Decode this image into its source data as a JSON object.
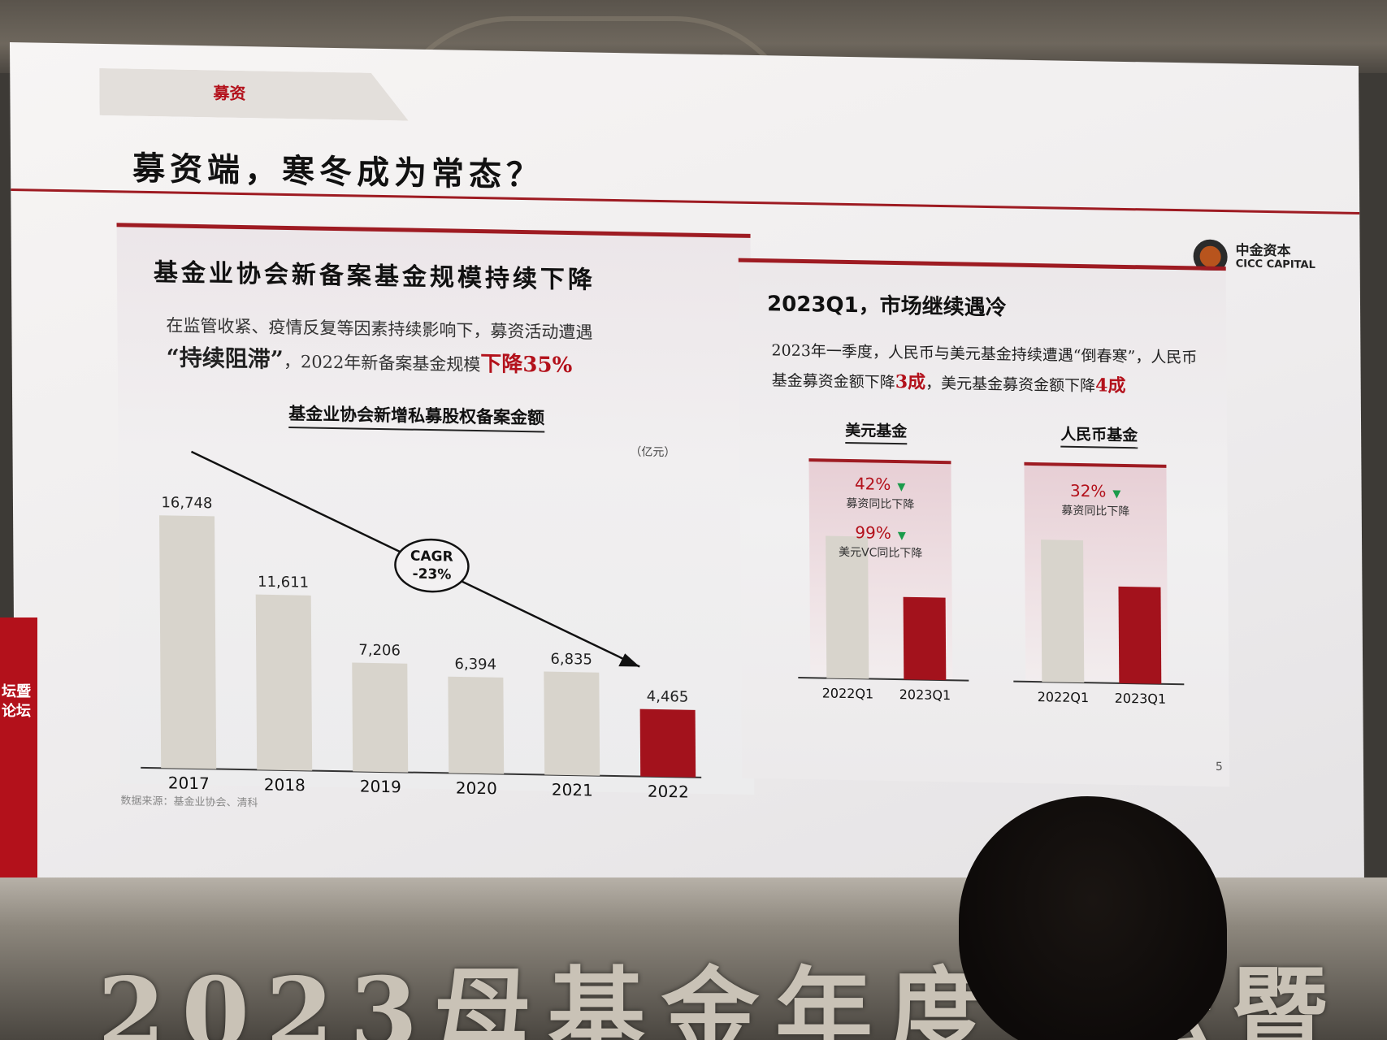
{
  "slide": {
    "tag": "募资",
    "title": "募资端，寒冬成为常态？",
    "logo_cn": "中金资本",
    "logo_en": "CICC CAPITAL",
    "page_number": "5",
    "source": "数据来源：基金业协会、清科"
  },
  "left_panel": {
    "title": "基金业协会新备案基金规模持续下降",
    "desc_line1": "在监管收紧、疫情反复等因素持续影响下，募资活动遭遇",
    "desc_quote": "“持续阻滞”",
    "desc_mid": "，2022年新备案基金规模",
    "desc_highlight": "下降35%",
    "chart_title": "基金业协会新增私募股权备案金额",
    "unit": "（亿元）",
    "cagr_line1": "CAGR",
    "cagr_line2": "-23%"
  },
  "right_panel": {
    "title": "2023Q1，市场继续遇冷",
    "desc_a": "2023年一季度，人民币与美元基金持续遭遇“倒春寒”，人民币基金募资金额下降",
    "desc_hl1": "3成",
    "desc_b": "，美元基金募资金额下降",
    "desc_hl2": "4成",
    "usd_label": "美元基金",
    "rmb_label": "人民币基金",
    "usd_stat1_pct": "42%",
    "usd_stat1_label": "募资同比下降",
    "usd_stat2_pct": "99%",
    "usd_stat2_label": "美元VC同比下降",
    "rmb_stat1_pct": "32%",
    "rmb_stat1_label": "募资同比下降",
    "down_icon": "▼"
  },
  "venue": {
    "side_text": "坛暨 论坛",
    "banner_text": "2023母基金年度论坛暨"
  },
  "colors": {
    "accent_red": "#9e1b22",
    "bar_gray": "#d8d4cc",
    "bar_red": "#a3121c",
    "down_green": "#1a9b4a"
  },
  "chart_data": [
    {
      "type": "bar",
      "title": "基金业协会新增私募股权备案金额",
      "unit": "（亿元）",
      "categories": [
        "2017",
        "2018",
        "2019",
        "2020",
        "2021",
        "2022"
      ],
      "values": [
        16748,
        11611,
        7206,
        6394,
        6835,
        4465
      ],
      "labels": [
        "16,748",
        "11,611",
        "7,206",
        "6,394",
        "6,835",
        "4,465"
      ],
      "highlight_index": 5,
      "ylim": [
        0,
        17500
      ],
      "annotation": "CAGR -23%",
      "trend_arrow": "downward"
    },
    {
      "type": "bar",
      "title": "美元基金",
      "categories": [
        "2022Q1",
        "2023Q1"
      ],
      "values": [
        1,
        0.58
      ],
      "highlight_index": 1
    },
    {
      "type": "bar",
      "title": "人民币基金",
      "categories": [
        "2022Q1",
        "2023Q1"
      ],
      "values": [
        1,
        0.68
      ],
      "highlight_index": 1
    }
  ]
}
